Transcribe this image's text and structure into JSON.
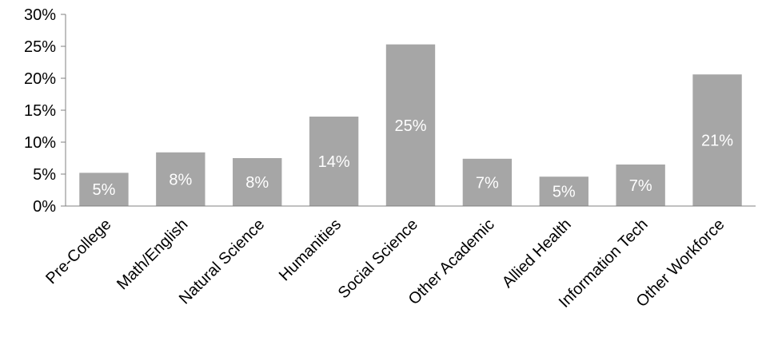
{
  "chart_data": {
    "type": "bar",
    "categories": [
      "Pre-College",
      "Math/English",
      "Natural Science",
      "Humanities",
      "Social Science",
      "Other Academic",
      "Allied Health",
      "Information Tech",
      "Other Workforce"
    ],
    "values": [
      5.2,
      8.4,
      7.5,
      14.0,
      25.3,
      7.4,
      4.6,
      6.5,
      20.6
    ],
    "data_labels": [
      "5%",
      "8%",
      "8%",
      "14%",
      "25%",
      "7%",
      "5%",
      "7%",
      "21%"
    ],
    "ylim": [
      0,
      30
    ],
    "yticks": [
      0,
      5,
      10,
      15,
      20,
      25,
      30
    ],
    "ytick_labels": [
      "0%",
      "5%",
      "10%",
      "15%",
      "20%",
      "25%",
      "30%"
    ],
    "title": "",
    "xlabel": "",
    "ylabel": "",
    "grid": false,
    "legend": "none",
    "bar_color": "#a6a6a6",
    "axis_color": "#808080"
  }
}
